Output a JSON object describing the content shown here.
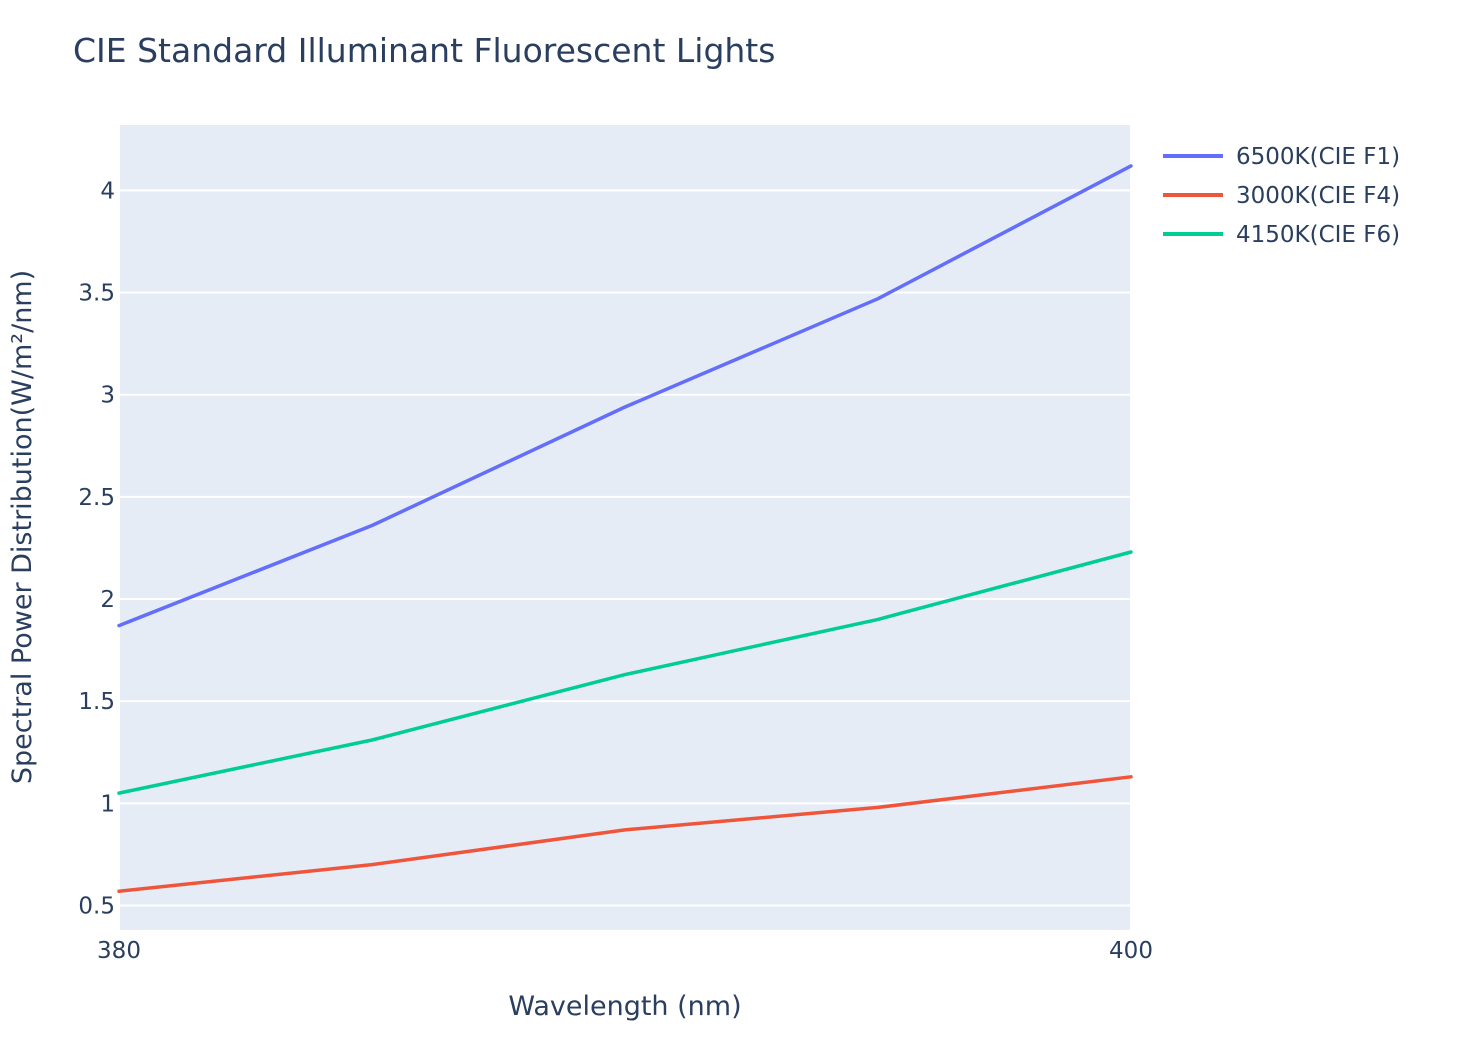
{
  "chart_data": {
    "type": "line",
    "title": "CIE Standard Illuminant Fluorescent Lights",
    "xlabel": "Wavelength (nm)",
    "ylabel": "Spectral Power Distribution(W/m²/nm)",
    "x": [
      380,
      385,
      390,
      395,
      400
    ],
    "xlim": [
      380,
      400
    ],
    "ylim": [
      0.38,
      4.32
    ],
    "xticks": [
      380,
      400
    ],
    "xtick_labels": [
      "380",
      "400"
    ],
    "yticks": [
      0.5,
      1,
      1.5,
      2,
      2.5,
      3,
      3.5,
      4
    ],
    "ytick_labels": [
      "0.5",
      "1",
      "1.5",
      "2",
      "2.5",
      "3",
      "3.5",
      "4"
    ],
    "grid": true,
    "legend_position": "top-right, outside plot",
    "background_color": "#e5ecf6",
    "series": [
      {
        "name": "6500K(CIE F1)",
        "color": "#636efa",
        "values": [
          1.87,
          2.36,
          2.94,
          3.47,
          4.12
        ]
      },
      {
        "name": "3000K(CIE F4)",
        "color": "#ef553b",
        "values": [
          0.57,
          0.7,
          0.87,
          0.98,
          1.13
        ]
      },
      {
        "name": "4150K(CIE F6)",
        "color": "#00cc96",
        "values": [
          1.05,
          1.31,
          1.63,
          1.9,
          2.23
        ]
      }
    ]
  }
}
